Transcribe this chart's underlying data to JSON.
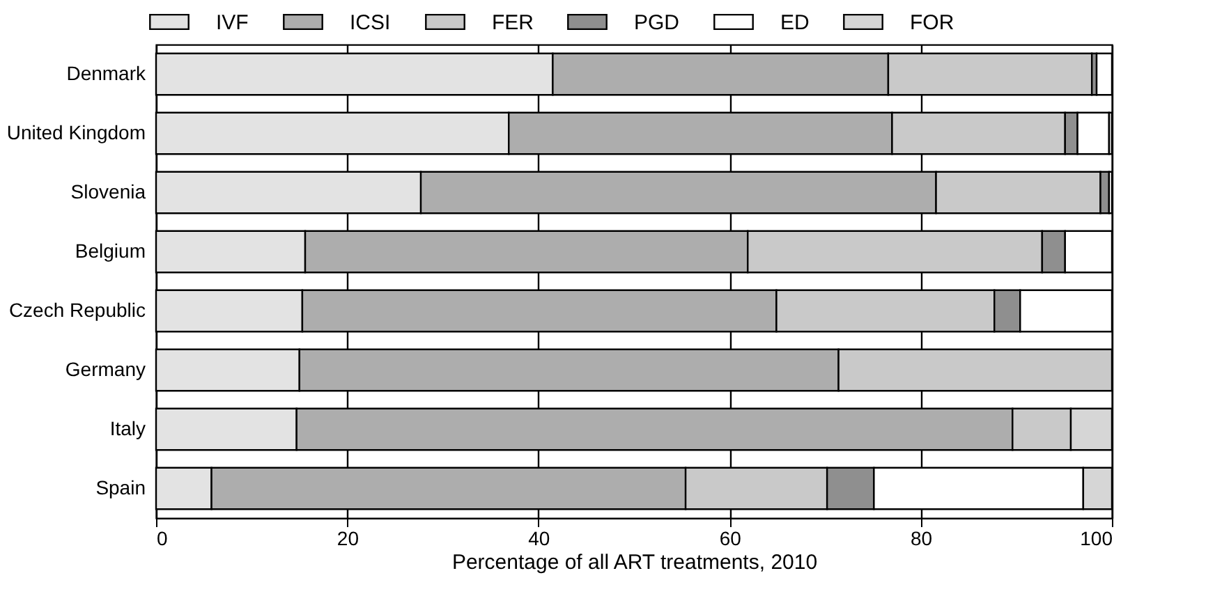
{
  "chart_data": {
    "type": "bar",
    "orientation": "horizontal",
    "stacked": true,
    "xlabel": "Percentage of all ART treatments, 2010",
    "categories": [
      "Denmark",
      "United Kingdom",
      "Slovenia",
      "Belgium",
      "Czech Republic",
      "Germany",
      "Italy",
      "Spain"
    ],
    "series": [
      {
        "name": "IVF",
        "color": "#e3e3e3",
        "values": [
          41.5,
          36.9,
          27.7,
          15.6,
          15.3,
          15.0,
          14.7,
          5.8
        ]
      },
      {
        "name": "ICSI",
        "color": "#adadad",
        "values": [
          35.1,
          40.1,
          53.9,
          46.3,
          49.6,
          56.4,
          74.9,
          49.6
        ]
      },
      {
        "name": "FER",
        "color": "#c9c9c9",
        "values": [
          21.3,
          18.1,
          17.2,
          30.8,
          22.8,
          28.6,
          6.1,
          14.8
        ]
      },
      {
        "name": "PGD",
        "color": "#8f8f8f",
        "values": [
          0.5,
          1.3,
          0.9,
          2.4,
          2.7,
          0,
          0,
          4.9
        ]
      },
      {
        "name": "ED",
        "color": "#ffffff",
        "values": [
          1.6,
          3.3,
          0.3,
          4.9,
          9.6,
          0,
          0,
          21.9
        ]
      },
      {
        "name": "FOR",
        "color": "#d6d6d6",
        "values": [
          0,
          0.3,
          0,
          0,
          0,
          0,
          4.3,
          3.0
        ]
      }
    ],
    "xlim": [
      0,
      100
    ],
    "xticks": [
      0,
      20,
      40,
      60,
      80,
      100
    ],
    "grid": "x",
    "legend": "top"
  }
}
